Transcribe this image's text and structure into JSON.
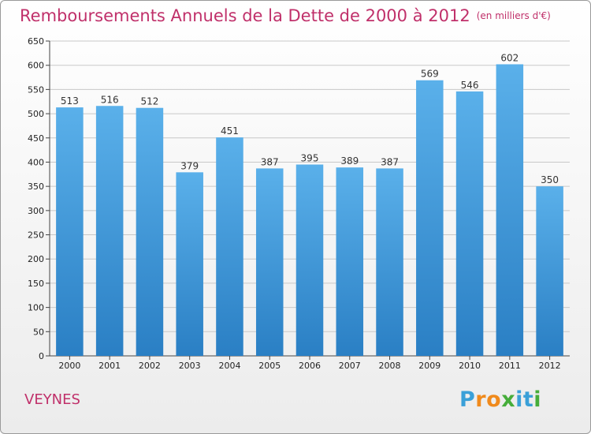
{
  "title": "Remboursements Annuels de la Dette de 2000 à 2012",
  "subtitle": "(en milliers d'€)",
  "town": "VEYNES",
  "logo": {
    "text": "Proxiti",
    "letters": [
      {
        "ch": "P",
        "color": "#3aa0d8"
      },
      {
        "ch": "r",
        "color": "#f08a1c"
      },
      {
        "ch": "o",
        "color": "#f08a1c"
      },
      {
        "ch": "x",
        "color": "#46ad3a"
      },
      {
        "ch": "i",
        "color": "#3aa0d8"
      },
      {
        "ch": "t",
        "color": "#3aa0d8"
      },
      {
        "ch": "i",
        "color": "#46ad3a"
      }
    ]
  },
  "colors": {
    "title": "#c0306a",
    "bar_top": "#5ab0ea",
    "bar_bottom": "#2a7fc4",
    "grid": "#c8c8c8",
    "axis": "#444444",
    "tick_text": "#222222"
  },
  "chart_data": {
    "type": "bar",
    "categories": [
      "2000",
      "2001",
      "2002",
      "2003",
      "2004",
      "2005",
      "2006",
      "2007",
      "2008",
      "2009",
      "2010",
      "2011",
      "2012"
    ],
    "values": [
      513,
      516,
      512,
      379,
      451,
      387,
      395,
      389,
      387,
      569,
      546,
      602,
      350
    ],
    "ylim": [
      0,
      650
    ],
    "yticks": [
      0,
      50,
      100,
      150,
      200,
      250,
      300,
      350,
      400,
      450,
      500,
      550,
      600,
      650
    ],
    "grid": true,
    "data_labels": true
  }
}
